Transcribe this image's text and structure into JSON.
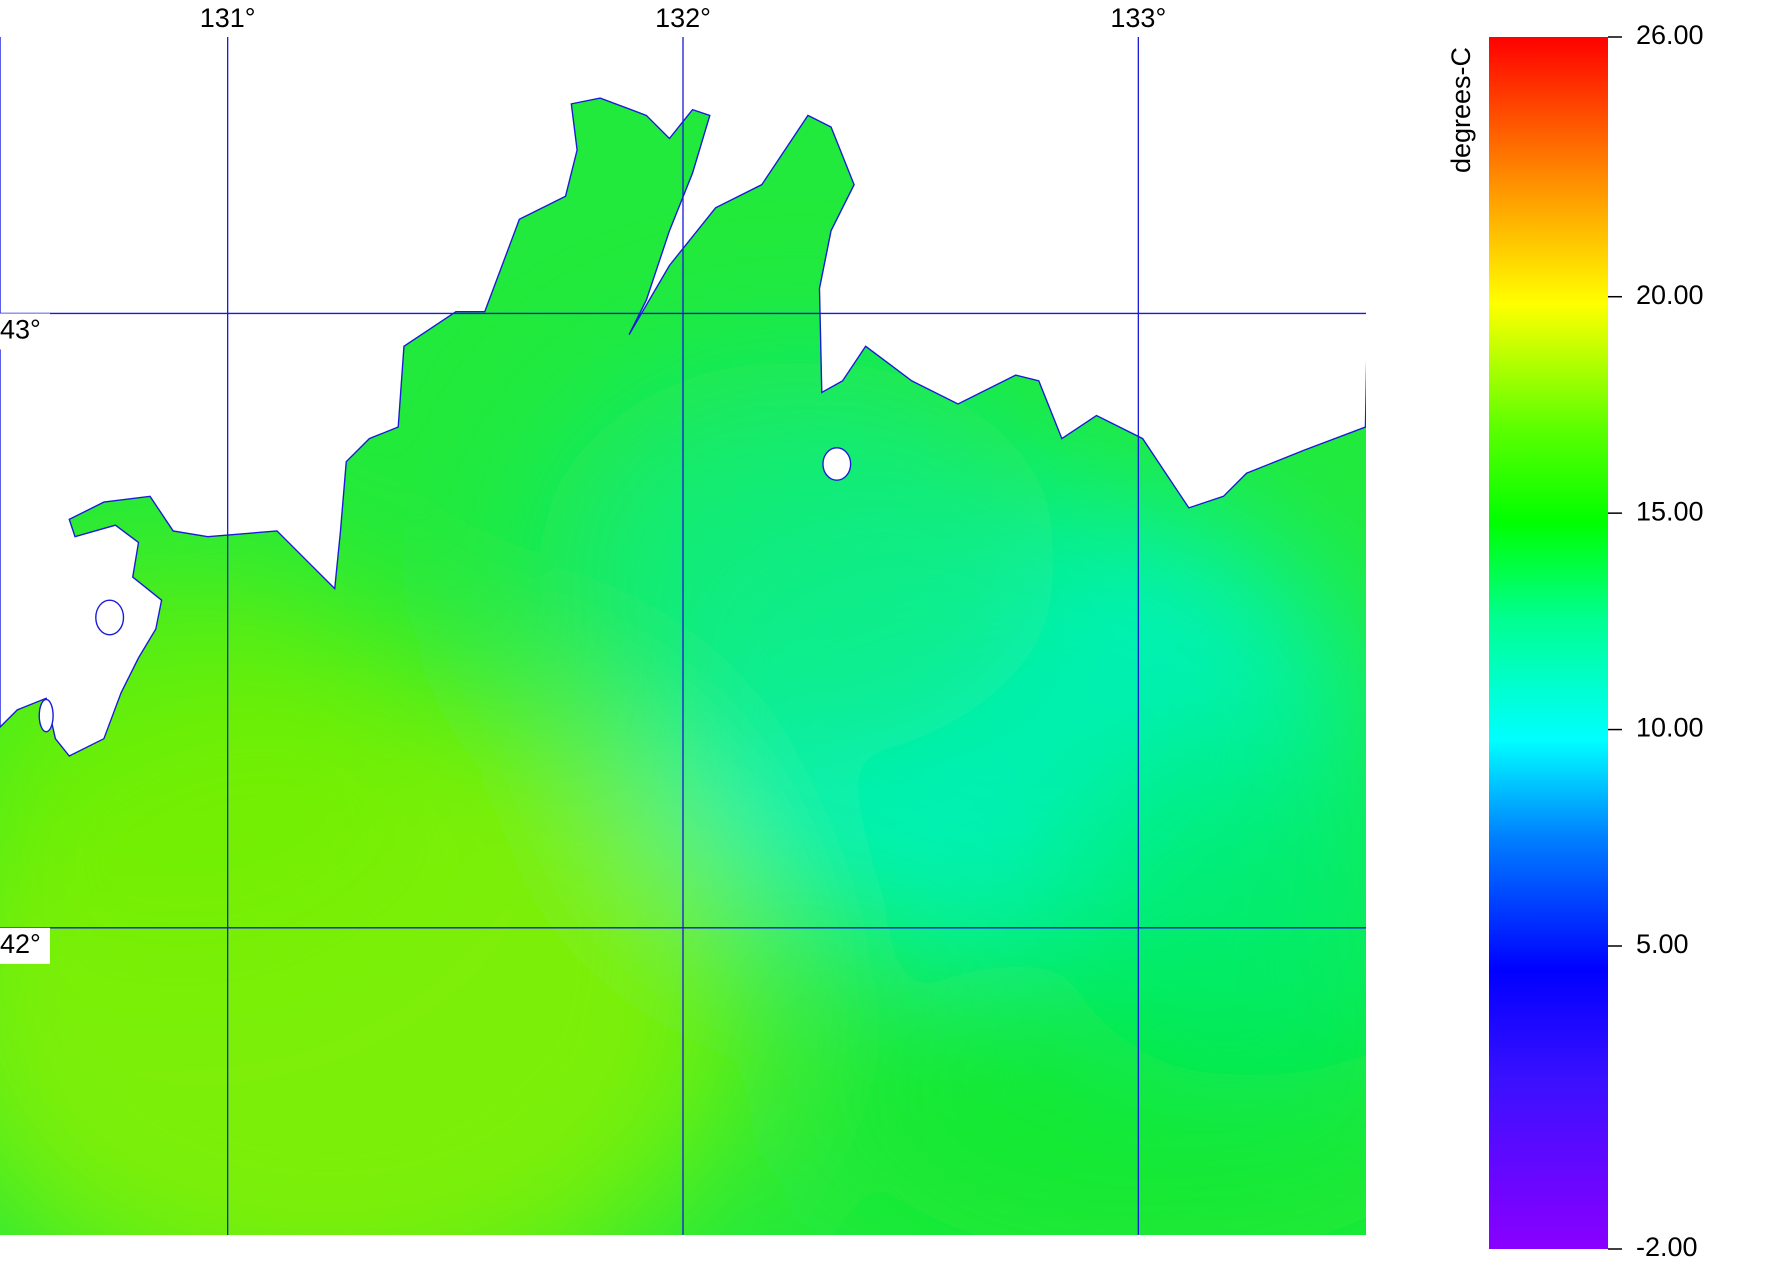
{
  "map": {
    "xlim": [
      130.5,
      133.5
    ],
    "ylim": [
      41.5,
      43.45
    ],
    "lon_ticks": [
      {
        "value": 131,
        "label": "131°"
      },
      {
        "value": 132,
        "label": "132°"
      },
      {
        "value": 133,
        "label": "133°"
      }
    ],
    "lat_ticks": [
      {
        "value": 43,
        "label": "43°"
      },
      {
        "value": 42,
        "label": "42°"
      }
    ]
  },
  "colorbar": {
    "label": "degrees-C",
    "range": [
      -2,
      26
    ],
    "ticks": [
      {
        "value": -2,
        "label": "-2.00"
      },
      {
        "value": 5,
        "label": "5.00"
      },
      {
        "value": 10,
        "label": "10.00"
      },
      {
        "value": 15,
        "label": "15.00"
      },
      {
        "value": 20,
        "label": "20.00"
      },
      {
        "value": 26,
        "label": "26.00"
      }
    ]
  }
}
